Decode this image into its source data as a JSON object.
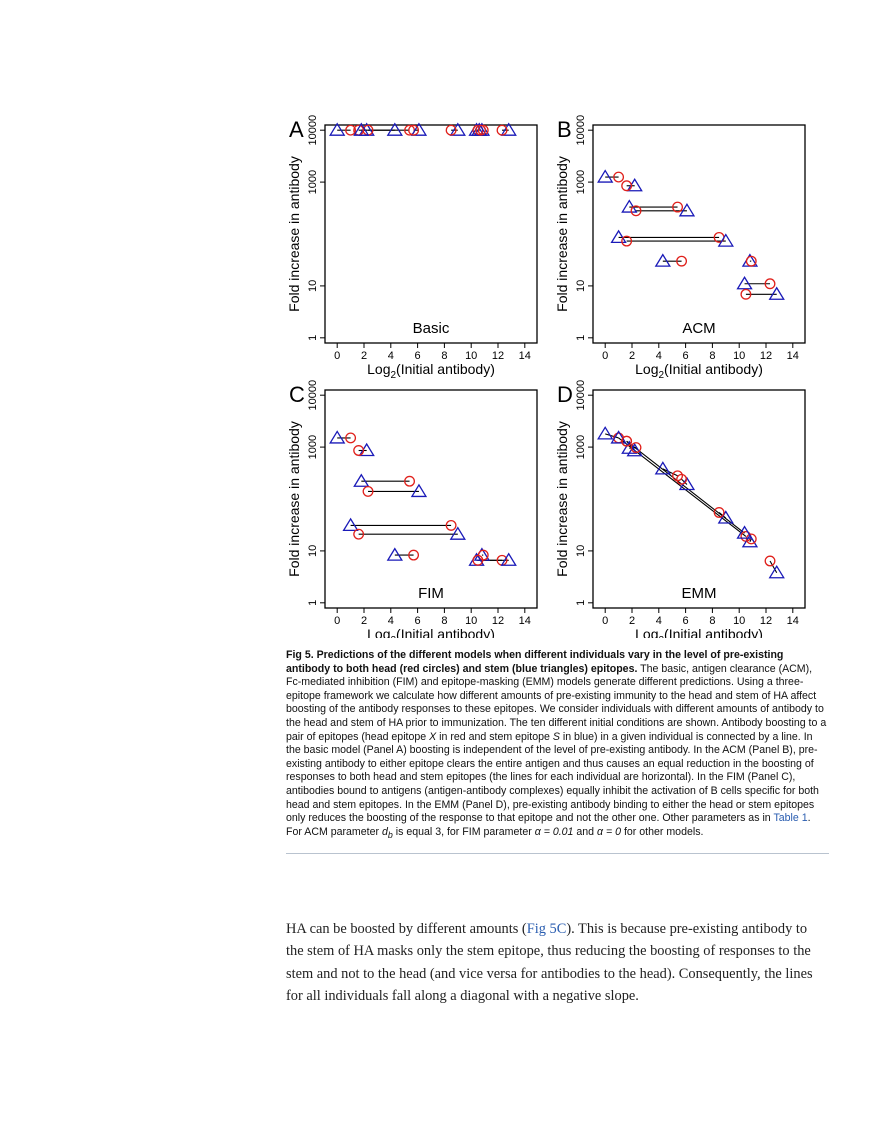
{
  "figure": {
    "y_axis_label": "Fold increase in antibody",
    "x_axis_label_prefix": "Log",
    "x_axis_label_sub": "2",
    "x_axis_label_suffix": "(Initial antibody)",
    "colors": {
      "head_circle": "#e0201b",
      "stem_triangle": "#1a1ab8",
      "line": "#000000"
    }
  },
  "chart_data": [
    {
      "type": "scatter",
      "panel_letter": "A",
      "model_label": "Basic",
      "x_ticks": [
        "0",
        "2",
        "4",
        "6",
        "8",
        "10",
        "12",
        "14"
      ],
      "y_ticks": [
        "1",
        "10",
        "1000",
        "10000"
      ],
      "xlim": [
        -0.5,
        14.5
      ],
      "y_scale": "log",
      "ylim_log10": [
        -0.1,
        4.1
      ],
      "pairs": [
        {
          "head_x": 1.0,
          "head_y": 10000,
          "stem_x": 0.0,
          "stem_y": 10000
        },
        {
          "head_x": 1.6,
          "head_y": 10000,
          "stem_x": 2.2,
          "stem_y": 10000
        },
        {
          "head_x": 2.3,
          "head_y": 10000,
          "stem_x": 4.3,
          "stem_y": 10000
        },
        {
          "head_x": 5.4,
          "head_y": 10000,
          "stem_x": 1.8,
          "stem_y": 10000
        },
        {
          "head_x": 5.7,
          "head_y": 10000,
          "stem_x": 6.1,
          "stem_y": 10000
        },
        {
          "head_x": 8.5,
          "head_y": 10000,
          "stem_x": 9.0,
          "stem_y": 10000
        },
        {
          "head_x": 10.5,
          "head_y": 10000,
          "stem_x": 10.4,
          "stem_y": 10000
        },
        {
          "head_x": 10.9,
          "head_y": 10000,
          "stem_x": 10.8,
          "stem_y": 10000
        },
        {
          "head_x": 12.3,
          "head_y": 10000,
          "stem_x": 12.8,
          "stem_y": 10000
        },
        {
          "head_x": 10.7,
          "head_y": 10000,
          "stem_x": 10.6,
          "stem_y": 10000
        }
      ]
    },
    {
      "type": "scatter",
      "panel_letter": "B",
      "model_label": "ACM",
      "x_ticks": [
        "0",
        "2",
        "4",
        "6",
        "8",
        "10",
        "12",
        "14"
      ],
      "y_ticks": [
        "1",
        "10",
        "1000",
        "10000"
      ],
      "xlim": [
        -0.5,
        14.5
      ],
      "y_scale": "log",
      "ylim_log10": [
        -0.1,
        4.1
      ],
      "pairs": [
        {
          "head_x": 1.0,
          "head_y": 1250,
          "stem_x": 0.0,
          "stem_y": 1250
        },
        {
          "head_x": 1.6,
          "head_y": 850,
          "stem_x": 2.2,
          "stem_y": 850
        },
        {
          "head_x": 5.4,
          "head_y": 330,
          "stem_x": 1.8,
          "stem_y": 330
        },
        {
          "head_x": 2.3,
          "head_y": 280,
          "stem_x": 6.1,
          "stem_y": 280
        },
        {
          "head_x": 8.5,
          "head_y": 86,
          "stem_x": 1.0,
          "stem_y": 86
        },
        {
          "head_x": 1.6,
          "head_y": 73,
          "stem_x": 9.0,
          "stem_y": 73
        },
        {
          "head_x": 5.7,
          "head_y": 30,
          "stem_x": 4.3,
          "stem_y": 30
        },
        {
          "head_x": 10.9,
          "head_y": 30,
          "stem_x": 10.8,
          "stem_y": 30
        },
        {
          "head_x": 12.3,
          "head_y": 11,
          "stem_x": 10.4,
          "stem_y": 11
        },
        {
          "head_x": 10.5,
          "head_y": 6.9,
          "stem_x": 12.8,
          "stem_y": 6.9
        }
      ]
    },
    {
      "type": "scatter",
      "panel_letter": "C",
      "model_label": "FIM",
      "x_ticks": [
        "0",
        "2",
        "4",
        "6",
        "8",
        "10",
        "12",
        "14"
      ],
      "y_ticks": [
        "1",
        "10",
        "1000",
        "10000"
      ],
      "xlim": [
        -0.5,
        14.5
      ],
      "y_scale": "log",
      "ylim_log10": [
        -0.1,
        4.1
      ],
      "pairs": [
        {
          "head_x": 1.0,
          "head_y": 1500,
          "stem_x": 0.0,
          "stem_y": 1500
        },
        {
          "head_x": 1.6,
          "head_y": 860,
          "stem_x": 2.2,
          "stem_y": 860
        },
        {
          "head_x": 5.4,
          "head_y": 220,
          "stem_x": 1.8,
          "stem_y": 220
        },
        {
          "head_x": 2.3,
          "head_y": 140,
          "stem_x": 6.1,
          "stem_y": 140
        },
        {
          "head_x": 8.5,
          "head_y": 31,
          "stem_x": 1.0,
          "stem_y": 31
        },
        {
          "head_x": 1.6,
          "head_y": 21,
          "stem_x": 9.0,
          "stem_y": 21
        },
        {
          "head_x": 5.7,
          "head_y": 8.3,
          "stem_x": 4.3,
          "stem_y": 8.3
        },
        {
          "head_x": 10.9,
          "head_y": 8.3,
          "stem_x": 10.8,
          "stem_y": 8.3
        },
        {
          "head_x": 12.3,
          "head_y": 6.6,
          "stem_x": 10.4,
          "stem_y": 6.6
        },
        {
          "head_x": 10.5,
          "head_y": 6.6,
          "stem_x": 12.8,
          "stem_y": 6.6
        }
      ]
    },
    {
      "type": "scatter",
      "panel_letter": "D",
      "model_label": "EMM",
      "x_ticks": [
        "0",
        "2",
        "4",
        "6",
        "8",
        "10",
        "12",
        "14"
      ],
      "y_ticks": [
        "1",
        "10",
        "1000",
        "10000"
      ],
      "xlim": [
        -0.5,
        14.5
      ],
      "y_scale": "log",
      "ylim_log10": [
        -0.1,
        4.1
      ],
      "pairs": [
        {
          "head_x": 1.0,
          "head_y": 1500,
          "stem_x": 0.0,
          "stem_y": 1800
        },
        {
          "head_x": 1.6,
          "head_y": 1300,
          "stem_x": 2.2,
          "stem_y": 850
        },
        {
          "head_x": 2.3,
          "head_y": 980,
          "stem_x": 1.8,
          "stem_y": 950
        },
        {
          "head_x": 5.4,
          "head_y": 280,
          "stem_x": 4.3,
          "stem_y": 380
        },
        {
          "head_x": 5.7,
          "head_y": 240,
          "stem_x": 6.1,
          "stem_y": 190
        },
        {
          "head_x": 8.5,
          "head_y": 55,
          "stem_x": 9.0,
          "stem_y": 43
        },
        {
          "head_x": 10.5,
          "head_y": 19,
          "stem_x": 1.0,
          "stem_y": 1500
        },
        {
          "head_x": 10.9,
          "head_y": 17,
          "stem_x": 10.8,
          "stem_y": 15
        },
        {
          "head_x": 12.3,
          "head_y": 6.4,
          "stem_x": 12.8,
          "stem_y": 3.8
        },
        {
          "head_x": 1.6,
          "head_y": 1300,
          "stem_x": 10.4,
          "stem_y": 22
        }
      ]
    }
  ],
  "caption": {
    "lead": "Fig 5.  Predictions of the different models when different individuals vary in the level of pre-existing antibody to both head (red circles) and stem (blue triangles) epitopes.",
    "text_1": " The basic, antigen clearance (ACM), Fc-mediated inhibition (FIM) and epitope-masking (EMM) models generate different predictions. Using a three-epitope framework we calculate how different amounts of pre-existing immunity to the head and stem of HA affect boosting of the antibody responses to these epitopes. We consider individuals with different amounts of antibody to the head and stem of HA prior to immunization. The ten different initial conditions are shown. Antibody boosting to a pair of epitopes (head epitope ",
    "var_x": "X",
    "text_2": " in red and stem epitope ",
    "var_s": "S",
    "text_3": " in blue) in a given individual is connected by a line. In the basic model (Panel A) boosting is independent of the level of pre-existing antibody. In the ACM (Panel B), pre-existing antibody to either epitope clears the entire antigen and thus causes an equal reduction in the boosting of responses to both head and stem epitopes (the lines for each individual are horizontal). In the FIM (Panel C), antibodies bound to antigens (antigen-antibody complexes) equally inhibit the activation of B cells specific for both head and stem epitopes. In the EMM (Panel D), pre-existing antibody binding to either the head or stem epitopes only reduces the boosting of the response to that epitope and not the other one. Other parameters as in ",
    "table_link": "Table 1",
    "text_4": ". For ACM parameter ",
    "param_d": "d",
    "param_d_sub": "b",
    "text_5": " is equal 3, for FIM parameter ",
    "alpha_1": "α = 0.01",
    "text_6": " and ",
    "alpha_2": "α = 0",
    "text_7": " for other models."
  },
  "body": {
    "text_1": "HA can be boosted by different amounts (",
    "fig_link": "Fig 5C",
    "text_2": "). This is because pre-existing antibody to the stem of HA masks only the stem epitope, thus reducing the boosting of responses to the stem and not to the head (and vice versa for antibodies to the head). Consequently, the lines for all individuals fall along a diagonal with a negative slope."
  }
}
